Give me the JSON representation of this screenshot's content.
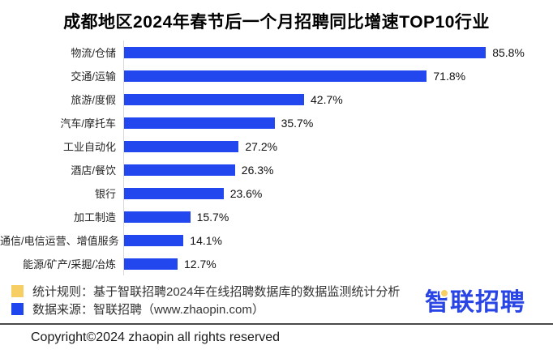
{
  "title": "成都地区2024年春节后一个月招聘同比增速TOP10行业",
  "chart_data": {
    "type": "bar",
    "orientation": "horizontal",
    "title": "成都地区2024年春节后一个月招聘同比增速TOP10行业",
    "categories": [
      "物流/仓储",
      "交通/运输",
      "旅游/度假",
      "汽车/摩托车",
      "工业自动化",
      "酒店/餐饮",
      "银行",
      "加工制造",
      "通信/电信运营、增值服务",
      "能源/矿产/采掘/冶炼"
    ],
    "values": [
      85.8,
      71.8,
      42.7,
      35.7,
      27.2,
      26.3,
      23.6,
      15.7,
      14.1,
      12.7
    ],
    "value_labels": [
      "85.8%",
      "71.8%",
      "42.7%",
      "35.7%",
      "27.2%",
      "26.3%",
      "23.6%",
      "15.7%",
      "14.1%",
      "12.7%"
    ],
    "xlabel": "",
    "ylabel": "",
    "xlim": [
      0,
      100
    ],
    "grid": false,
    "legend_position": "none",
    "bar_color": "#2347ee",
    "data_labels_shown": true
  },
  "footer": {
    "legend": [
      {
        "color": "#f6ce63",
        "label": "统计规则：基于智联招聘2024年在线招聘数据库的数据监测统计分析"
      },
      {
        "color": "#1f46ee",
        "label": "数据来源：智联招聘（www.zhaopin.com）"
      }
    ],
    "copyright": "Copyright©2024 zhaopin all rights reserved"
  },
  "logo": {
    "text": "智联招聘",
    "color": "#2945e5",
    "accent_color": "#f6ce63"
  }
}
